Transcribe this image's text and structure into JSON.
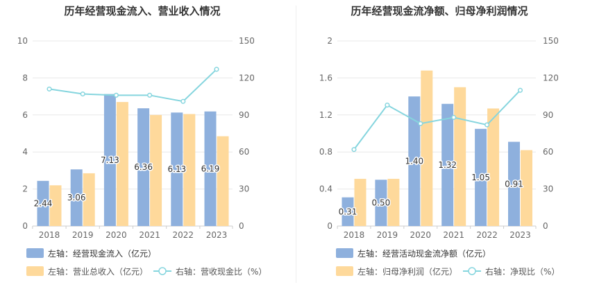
{
  "colors": {
    "left_bar": "#8eb0dd",
    "right_bar": "#fed99b",
    "line": "#85d5de",
    "grid": "#e8e8e8",
    "axis": "#cccccc",
    "tick": "#666666",
    "label": "#333333"
  },
  "chart_data": [
    {
      "type": "bar+line",
      "title": "历年经营现金流入、营业收入情况",
      "categories": [
        "2018",
        "2019",
        "2020",
        "2021",
        "2022",
        "2023"
      ],
      "left_axis": {
        "min": 0,
        "max": 10,
        "ticks": [
          "0",
          "2",
          "4",
          "6",
          "8",
          "10"
        ]
      },
      "right_axis": {
        "min": 0,
        "max": 150,
        "ticks": [
          "0",
          "30",
          "60",
          "90",
          "120",
          "150"
        ]
      },
      "series": [
        {
          "name": "左轴：经营现金流入（亿元）",
          "axis": "left",
          "kind": "bar",
          "values": [
            2.44,
            3.06,
            7.13,
            6.36,
            6.13,
            6.19
          ],
          "labels": [
            "2.44",
            "3.06",
            "7.13",
            "6.36",
            "6.13",
            "6.19"
          ]
        },
        {
          "name": "左轴：营业总收入（亿元）",
          "axis": "left",
          "kind": "bar",
          "values": [
            2.2,
            2.85,
            6.7,
            6.0,
            6.05,
            4.85
          ]
        },
        {
          "name": "右轴：营收现金比（%）",
          "axis": "right",
          "kind": "line",
          "values": [
            111,
            107,
            106,
            106,
            101,
            127
          ]
        }
      ]
    },
    {
      "type": "bar+line",
      "title": "历年经营现金流净额、归母净利润情况",
      "categories": [
        "2018",
        "2019",
        "2020",
        "2021",
        "2022",
        "2023"
      ],
      "left_axis": {
        "min": 0,
        "max": 2,
        "ticks": [
          "0",
          "0.4",
          "0.8",
          "1.2",
          "1.6",
          "2"
        ]
      },
      "right_axis": {
        "min": 0,
        "max": 150,
        "ticks": [
          "0",
          "30",
          "60",
          "90",
          "120",
          "150"
        ]
      },
      "series": [
        {
          "name": "左轴：经营活动现金流净额（亿元）",
          "axis": "left",
          "kind": "bar",
          "values": [
            0.31,
            0.5,
            1.4,
            1.32,
            1.05,
            0.91
          ],
          "labels": [
            "0.31",
            "0.50",
            "1.40",
            "1.32",
            "1.05",
            "0.91"
          ]
        },
        {
          "name": "左轴：归母净利润（亿元）",
          "axis": "left",
          "kind": "bar",
          "values": [
            0.51,
            0.51,
            1.68,
            1.5,
            1.27,
            0.82
          ]
        },
        {
          "name": "右轴：净现比（%）",
          "axis": "right",
          "kind": "line",
          "values": [
            62,
            98,
            83,
            88,
            82,
            110
          ]
        }
      ]
    }
  ]
}
